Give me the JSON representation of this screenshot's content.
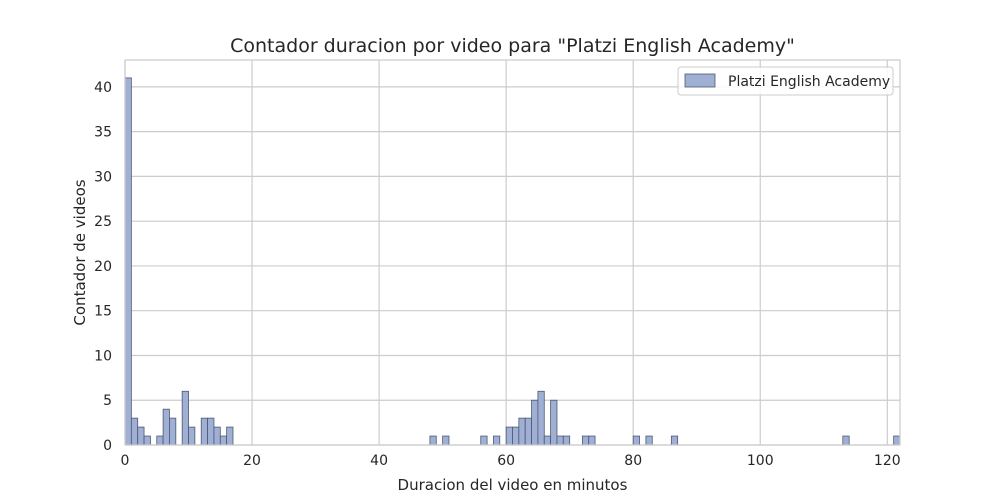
{
  "chart_data": {
    "type": "bar",
    "title": "Contador duracion por video para \"Platzi English Academy\"",
    "xlabel": "Duracion del video en minutos",
    "ylabel": "Contador de videos",
    "xlim": [
      0,
      122
    ],
    "ylim": [
      0,
      43
    ],
    "xticks": [
      0,
      20,
      40,
      60,
      80,
      100,
      120
    ],
    "yticks": [
      0,
      5,
      10,
      15,
      20,
      25,
      30,
      35,
      40
    ],
    "grid": true,
    "legend_position": "top-right",
    "bin_width": 1,
    "colors": {
      "bar_fill": "#9fb0d4",
      "bar_edge": "#4d5870",
      "grid": "#cccccc",
      "spine": "#cccccc"
    },
    "series": [
      {
        "name": "Platzi English Academy",
        "bins": [
          {
            "x": 0,
            "count": 41
          },
          {
            "x": 1,
            "count": 3
          },
          {
            "x": 2,
            "count": 2
          },
          {
            "x": 3,
            "count": 1
          },
          {
            "x": 5,
            "count": 1
          },
          {
            "x": 6,
            "count": 4
          },
          {
            "x": 7,
            "count": 3
          },
          {
            "x": 9,
            "count": 6
          },
          {
            "x": 10,
            "count": 2
          },
          {
            "x": 12,
            "count": 3
          },
          {
            "x": 13,
            "count": 3
          },
          {
            "x": 14,
            "count": 2
          },
          {
            "x": 15,
            "count": 1
          },
          {
            "x": 16,
            "count": 2
          },
          {
            "x": 48,
            "count": 1
          },
          {
            "x": 50,
            "count": 1
          },
          {
            "x": 56,
            "count": 1
          },
          {
            "x": 58,
            "count": 1
          },
          {
            "x": 60,
            "count": 2
          },
          {
            "x": 61,
            "count": 2
          },
          {
            "x": 62,
            "count": 3
          },
          {
            "x": 63,
            "count": 3
          },
          {
            "x": 64,
            "count": 5
          },
          {
            "x": 65,
            "count": 6
          },
          {
            "x": 66,
            "count": 1
          },
          {
            "x": 67,
            "count": 5
          },
          {
            "x": 68,
            "count": 1
          },
          {
            "x": 69,
            "count": 1
          },
          {
            "x": 72,
            "count": 1
          },
          {
            "x": 73,
            "count": 1
          },
          {
            "x": 80,
            "count": 1
          },
          {
            "x": 82,
            "count": 1
          },
          {
            "x": 86,
            "count": 1
          },
          {
            "x": 113,
            "count": 1
          },
          {
            "x": 121,
            "count": 1
          }
        ]
      }
    ]
  }
}
